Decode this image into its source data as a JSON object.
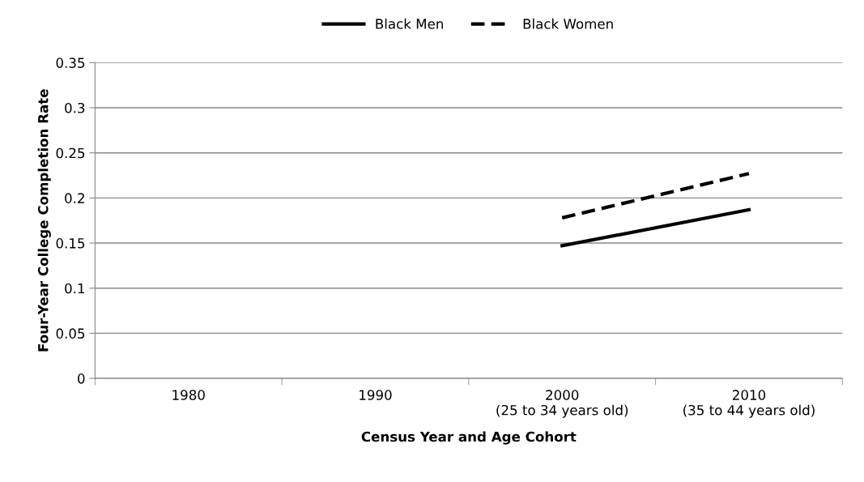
{
  "chart_data": {
    "type": "line",
    "xlabel": "Census Year and Age Cohort",
    "ylabel": "Four-Year College Completion Rate",
    "categories": [
      "1980",
      "1990",
      "2000\n(25 to 34 years old)",
      "2010\n(35 to 44 years old)"
    ],
    "series": [
      {
        "name": "Black Men",
        "color": "#000000",
        "line_style": "solid",
        "values": [
          null,
          null,
          0.147,
          0.187
        ]
      },
      {
        "name": "Black Women",
        "color": "#000000",
        "line_style": "dashed",
        "values": [
          null,
          null,
          0.178,
          0.227
        ]
      }
    ],
    "ylim": [
      0,
      0.35
    ],
    "yticks": [
      0,
      0.05,
      0.1,
      0.15,
      0.2,
      0.25,
      0.3,
      0.35
    ],
    "grid": "y",
    "legend": "top",
    "marker": "none"
  }
}
